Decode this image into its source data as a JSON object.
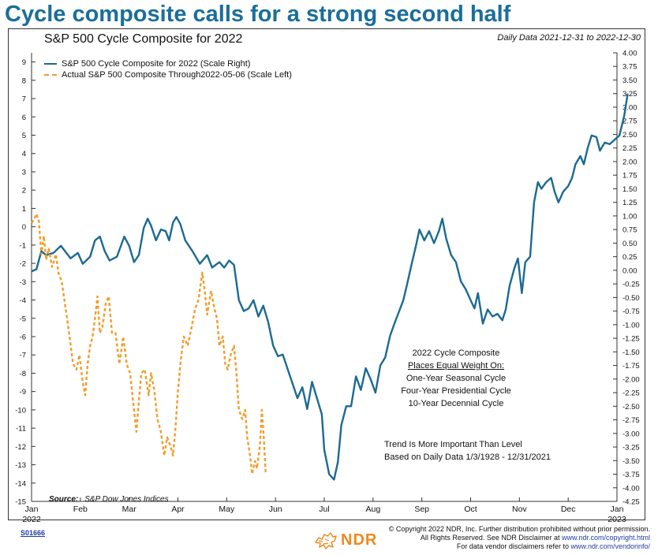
{
  "headline": "Cycle composite calls for a strong second half",
  "chart_id": "S01666",
  "disclaimer": {
    "line1": "© Copyright 2022 NDR, Inc. Further distribution prohibited without prior permission.",
    "line2_prefix": "All Rights Reserved. See NDR Disclaimer at ",
    "line2_link": "www.ndr.com/copyright.html",
    "line3_prefix": "For data vendor disclaimers refer to ",
    "line3_link": "www.ndr.com/vendorinfo/"
  },
  "logo_text": "NDR",
  "notes": {
    "composite_title": "2022 Cycle Composite",
    "composite_sub": "Places Equal Weight On:",
    "composite_items": [
      "One-Year Seasonal Cycle",
      "Four-Year Presidential Cycle",
      "10-Year Decennial Cycle"
    ],
    "trend_line1": "Trend Is More Important Than Level",
    "trend_line2": "Based on Daily Data 1/3/1928 - 12/31/2021"
  },
  "source": {
    "label": "Source:",
    "value": "S&P Dow Jones Indices"
  },
  "colors": {
    "composite": "#1b6a93",
    "actual": "#f39c2b",
    "headline": "#1a6e9a"
  },
  "chart_data": {
    "type": "line",
    "title": "S&P 500 Cycle Composite for 2022",
    "date_range": "Daily Data 2021-12-31 to 2022-12-30",
    "x_ticks": [
      {
        "label": "Jan",
        "sub": "2022",
        "m": 0
      },
      {
        "label": "Feb",
        "sub": "",
        "m": 1
      },
      {
        "label": "Mar",
        "sub": "",
        "m": 2
      },
      {
        "label": "Apr",
        "sub": "",
        "m": 3
      },
      {
        "label": "May",
        "sub": "",
        "m": 4
      },
      {
        "label": "Jun",
        "sub": "",
        "m": 5
      },
      {
        "label": "Jul",
        "sub": "",
        "m": 6
      },
      {
        "label": "Aug",
        "sub": "",
        "m": 7
      },
      {
        "label": "Sep",
        "sub": "",
        "m": 8
      },
      {
        "label": "Oct",
        "sub": "",
        "m": 9
      },
      {
        "label": "Nov",
        "sub": "",
        "m": 10
      },
      {
        "label": "Dec",
        "sub": "",
        "m": 11
      },
      {
        "label": "Jan",
        "sub": "2023",
        "m": 12
      }
    ],
    "left_axis": {
      "range": [
        -15,
        9.5
      ],
      "ticks": [
        9,
        8,
        7,
        6,
        5,
        4,
        3,
        2,
        1,
        0,
        -1,
        -2,
        -3,
        -4,
        -5,
        -6,
        -7,
        -8,
        -9,
        -10,
        -11,
        -12,
        -13,
        -14,
        -15
      ]
    },
    "right_axis": {
      "range": [
        -4.25,
        4.0
      ],
      "ticks": [
        "4.00",
        "3.75",
        "3.50",
        "3.25",
        "3.00",
        "2.75",
        "2.50",
        "2.25",
        "2.00",
        "1.75",
        "1.50",
        "1.25",
        "1.00",
        "0.75",
        "0.50",
        "0.25",
        "0.00",
        "-0.25",
        "-0.50",
        "-0.75",
        "-1.00",
        "-1.25",
        "-1.50",
        "-1.75",
        "-2.00",
        "-2.25",
        "-2.50",
        "-2.75",
        "-3.00",
        "-3.25",
        "-3.50",
        "-3.75",
        "-4.00",
        "-4.25"
      ]
    },
    "series": [
      {
        "name": "S&P 500 Cycle Composite for 2022 (Scale Right)",
        "axis": "right",
        "style": "solid",
        "points": [
          [
            0.0,
            -0.02
          ],
          [
            0.1,
            0.02
          ],
          [
            0.2,
            0.35
          ],
          [
            0.3,
            0.28
          ],
          [
            0.45,
            0.32
          ],
          [
            0.6,
            0.45
          ],
          [
            0.8,
            0.22
          ],
          [
            0.95,
            0.32
          ],
          [
            1.05,
            0.12
          ],
          [
            1.2,
            0.25
          ],
          [
            1.3,
            0.55
          ],
          [
            1.4,
            0.62
          ],
          [
            1.5,
            0.35
          ],
          [
            1.6,
            0.18
          ],
          [
            1.75,
            0.25
          ],
          [
            1.9,
            0.62
          ],
          [
            2.0,
            0.45
          ],
          [
            2.1,
            0.15
          ],
          [
            2.2,
            0.28
          ],
          [
            2.3,
            0.78
          ],
          [
            2.38,
            0.95
          ],
          [
            2.45,
            0.82
          ],
          [
            2.55,
            0.55
          ],
          [
            2.65,
            0.75
          ],
          [
            2.75,
            0.72
          ],
          [
            2.82,
            0.55
          ],
          [
            2.9,
            0.88
          ],
          [
            2.97,
            0.98
          ],
          [
            3.05,
            0.85
          ],
          [
            3.15,
            0.55
          ],
          [
            3.3,
            0.35
          ],
          [
            3.45,
            0.12
          ],
          [
            3.6,
            0.28
          ],
          [
            3.7,
            0.05
          ],
          [
            3.85,
            0.15
          ],
          [
            3.95,
            0.05
          ],
          [
            4.05,
            0.18
          ],
          [
            4.15,
            0.1
          ],
          [
            4.25,
            -0.55
          ],
          [
            4.35,
            -0.75
          ],
          [
            4.45,
            -0.7
          ],
          [
            4.55,
            -0.55
          ],
          [
            4.65,
            -0.85
          ],
          [
            4.75,
            -0.65
          ],
          [
            4.85,
            -0.95
          ],
          [
            4.95,
            -1.38
          ],
          [
            5.05,
            -1.58
          ],
          [
            5.15,
            -1.55
          ],
          [
            5.3,
            -1.95
          ],
          [
            5.45,
            -2.35
          ],
          [
            5.55,
            -2.15
          ],
          [
            5.65,
            -2.55
          ],
          [
            5.75,
            -2.05
          ],
          [
            5.85,
            -2.35
          ],
          [
            5.95,
            -2.65
          ],
          [
            6.0,
            -3.3
          ],
          [
            6.1,
            -3.75
          ],
          [
            6.2,
            -3.85
          ],
          [
            6.28,
            -3.52
          ],
          [
            6.35,
            -2.85
          ],
          [
            6.45,
            -2.5
          ],
          [
            6.55,
            -2.5
          ],
          [
            6.65,
            -1.95
          ],
          [
            6.75,
            -2.2
          ],
          [
            6.85,
            -1.8
          ],
          [
            6.95,
            -2.0
          ],
          [
            7.05,
            -2.25
          ],
          [
            7.15,
            -1.75
          ],
          [
            7.25,
            -1.6
          ],
          [
            7.35,
            -1.2
          ],
          [
            7.45,
            -0.95
          ],
          [
            7.55,
            -0.72
          ],
          [
            7.62,
            -0.55
          ],
          [
            7.7,
            -0.25
          ],
          [
            7.8,
            0.15
          ],
          [
            7.88,
            0.45
          ],
          [
            7.95,
            0.75
          ],
          [
            8.05,
            0.55
          ],
          [
            8.15,
            0.72
          ],
          [
            8.25,
            0.5
          ],
          [
            8.35,
            0.72
          ],
          [
            8.42,
            0.95
          ],
          [
            8.5,
            0.58
          ],
          [
            8.6,
            0.28
          ],
          [
            8.7,
            0.15
          ],
          [
            8.8,
            -0.2
          ],
          [
            8.9,
            -0.35
          ],
          [
            9.0,
            -0.55
          ],
          [
            9.08,
            -0.7
          ],
          [
            9.15,
            -0.42
          ],
          [
            9.25,
            -0.98
          ],
          [
            9.35,
            -0.72
          ],
          [
            9.45,
            -0.85
          ],
          [
            9.55,
            -0.8
          ],
          [
            9.65,
            -0.92
          ],
          [
            9.72,
            -0.72
          ],
          [
            9.8,
            -0.28
          ],
          [
            9.9,
            0.05
          ],
          [
            9.97,
            0.22
          ],
          [
            10.05,
            -0.42
          ],
          [
            10.12,
            0.15
          ],
          [
            10.22,
            0.25
          ],
          [
            10.3,
            1.25
          ],
          [
            10.38,
            1.62
          ],
          [
            10.45,
            1.5
          ],
          [
            10.55,
            1.62
          ],
          [
            10.65,
            1.7
          ],
          [
            10.72,
            1.45
          ],
          [
            10.8,
            1.25
          ],
          [
            10.9,
            1.45
          ],
          [
            11.0,
            1.55
          ],
          [
            11.08,
            1.7
          ],
          [
            11.15,
            1.95
          ],
          [
            11.25,
            2.1
          ],
          [
            11.32,
            1.95
          ],
          [
            11.4,
            2.25
          ],
          [
            11.48,
            2.48
          ],
          [
            11.58,
            2.45
          ],
          [
            11.65,
            2.2
          ],
          [
            11.75,
            2.35
          ],
          [
            11.85,
            2.32
          ],
          [
            11.95,
            2.4
          ],
          [
            12.05,
            2.48
          ],
          [
            12.15,
            2.85
          ],
          [
            12.22,
            3.25
          ]
        ]
      },
      {
        "name": "Actual S&P 500 Composite Through2022-05-06 (Scale Left)",
        "axis": "left",
        "style": "dashed",
        "points": [
          [
            0.0,
            0.2
          ],
          [
            0.05,
            0.4
          ],
          [
            0.1,
            0.7
          ],
          [
            0.15,
            0.3
          ],
          [
            0.2,
            -1.5
          ],
          [
            0.25,
            -0.5
          ],
          [
            0.3,
            -1.8
          ],
          [
            0.35,
            -1.2
          ],
          [
            0.42,
            -2.2
          ],
          [
            0.5,
            -1.5
          ],
          [
            0.55,
            -2.5
          ],
          [
            0.62,
            -3.0
          ],
          [
            0.7,
            -4.5
          ],
          [
            0.78,
            -6.0
          ],
          [
            0.85,
            -7.5
          ],
          [
            0.92,
            -7.8
          ],
          [
            0.98,
            -7.0
          ],
          [
            1.05,
            -8.5
          ],
          [
            1.1,
            -9.2
          ],
          [
            1.15,
            -7.5
          ],
          [
            1.2,
            -6.5
          ],
          [
            1.25,
            -6.0
          ],
          [
            1.3,
            -5.0
          ],
          [
            1.35,
            -3.8
          ],
          [
            1.4,
            -5.8
          ],
          [
            1.45,
            -5.5
          ],
          [
            1.52,
            -4.2
          ],
          [
            1.58,
            -3.8
          ],
          [
            1.65,
            -5.8
          ],
          [
            1.72,
            -5.8
          ],
          [
            1.8,
            -7.5
          ],
          [
            1.88,
            -6.0
          ],
          [
            1.95,
            -7.5
          ],
          [
            2.02,
            -8.0
          ],
          [
            2.08,
            -9.5
          ],
          [
            2.15,
            -11.2
          ],
          [
            2.2,
            -9.5
          ],
          [
            2.25,
            -8.0
          ],
          [
            2.32,
            -7.8
          ],
          [
            2.4,
            -9.2
          ],
          [
            2.45,
            -8.0
          ],
          [
            2.52,
            -9.0
          ],
          [
            2.58,
            -10.5
          ],
          [
            2.65,
            -11.2
          ],
          [
            2.72,
            -12.5
          ],
          [
            2.78,
            -11.5
          ],
          [
            2.85,
            -12.0
          ],
          [
            2.9,
            -12.5
          ],
          [
            2.95,
            -11.0
          ],
          [
            3.0,
            -9.0
          ],
          [
            3.05,
            -7.5
          ],
          [
            3.12,
            -6.0
          ],
          [
            3.2,
            -6.5
          ],
          [
            3.28,
            -5.5
          ],
          [
            3.35,
            -4.5
          ],
          [
            3.42,
            -4.0
          ],
          [
            3.5,
            -2.5
          ],
          [
            3.55,
            -3.5
          ],
          [
            3.6,
            -4.8
          ],
          [
            3.68,
            -3.5
          ],
          [
            3.75,
            -4.5
          ],
          [
            3.8,
            -5.0
          ],
          [
            3.85,
            -6.5
          ],
          [
            3.92,
            -6.0
          ],
          [
            3.97,
            -7.5
          ],
          [
            4.02,
            -7.8
          ],
          [
            4.08,
            -7.0
          ],
          [
            4.15,
            -6.5
          ],
          [
            4.2,
            -8.0
          ],
          [
            4.25,
            -10.0
          ],
          [
            4.32,
            -10.5
          ],
          [
            4.38,
            -10.0
          ],
          [
            4.42,
            -11.5
          ],
          [
            4.48,
            -12.5
          ],
          [
            4.52,
            -13.5
          ],
          [
            4.58,
            -12.8
          ],
          [
            4.62,
            -13.2
          ],
          [
            4.68,
            -12.0
          ],
          [
            4.72,
            -10.0
          ],
          [
            4.76,
            -11.5
          ],
          [
            4.8,
            -13.5
          ]
        ]
      }
    ],
    "legend_position": "top-left",
    "grid": false
  }
}
